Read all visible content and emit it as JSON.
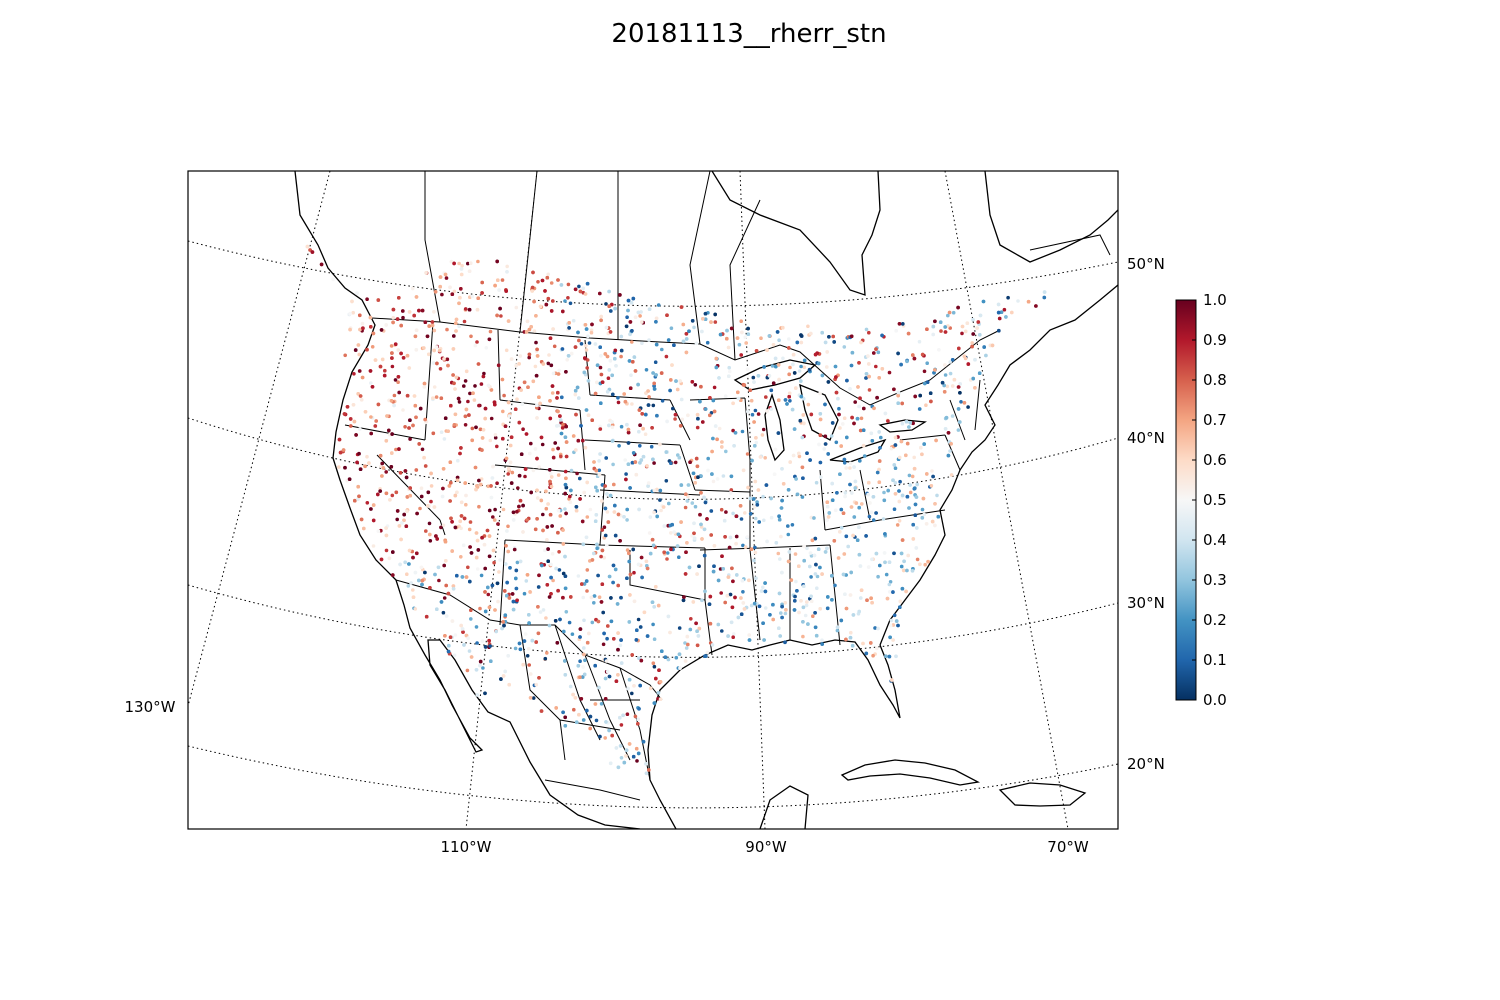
{
  "title": "20181113__rherr_stn",
  "map": {
    "projection": "lambert-conformal",
    "meridian_labels": [
      "130°W",
      "110°W",
      "90°W",
      "70°W"
    ],
    "parallel_labels": [
      "50°N",
      "40°N",
      "30°N",
      "20°N"
    ],
    "marker": "station-dot",
    "colormap": "RdBu_r"
  },
  "colorbar": {
    "min": 0.0,
    "max": 1.0,
    "ticks": [
      "1.0",
      "0.9",
      "0.8",
      "0.7",
      "0.6",
      "0.5",
      "0.4",
      "0.3",
      "0.2",
      "0.1",
      "0.0"
    ],
    "colors": [
      "#053061",
      "#2166ac",
      "#4393c3",
      "#92c5de",
      "#d1e5f0",
      "#f7f7f7",
      "#fddbc7",
      "#f4a582",
      "#d6604d",
      "#b2182b",
      "#67001f"
    ]
  }
}
